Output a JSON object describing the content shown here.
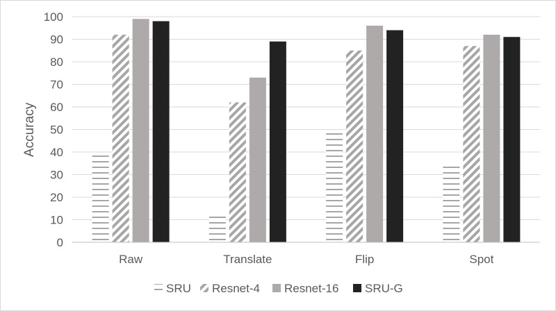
{
  "chart_data": {
    "type": "bar",
    "title": "",
    "xlabel": "",
    "ylabel": "Accuracy",
    "ylim": [
      0,
      100
    ],
    "yticks": [
      0,
      10,
      20,
      30,
      40,
      50,
      60,
      70,
      80,
      90,
      100
    ],
    "categories": [
      "Raw",
      "Translate",
      "Flip",
      "Spot"
    ],
    "series": [
      {
        "name": "SRU",
        "values": [
          39,
          12,
          49,
          34
        ],
        "color": "#a6a6a6",
        "pattern": "horizontal-stripes"
      },
      {
        "name": "Resnet-4",
        "values": [
          92,
          62,
          85,
          87
        ],
        "color": "#a6a6a6",
        "pattern": "diagonal-stripes"
      },
      {
        "name": "Resnet-16",
        "values": [
          99,
          73,
          96,
          92
        ],
        "color": "#aeaaaa",
        "pattern": "solid"
      },
      {
        "name": "SRU-G",
        "values": [
          98,
          89,
          94,
          91
        ],
        "color": "#222222",
        "pattern": "solid"
      }
    ],
    "grid": true,
    "legend": "bottom"
  }
}
